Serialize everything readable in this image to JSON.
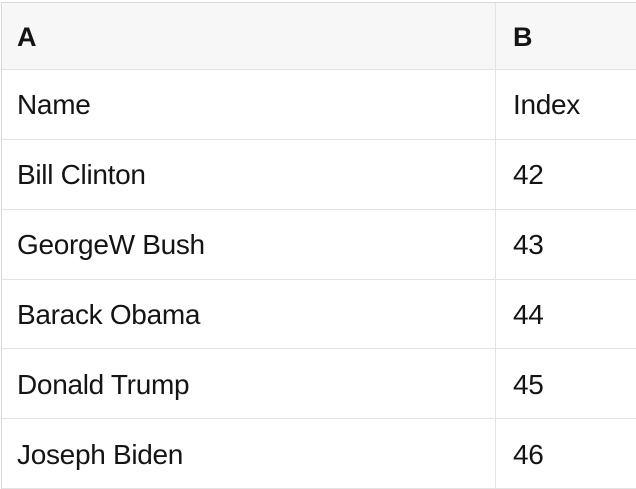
{
  "colors": {
    "background": "#ffffff",
    "header_bg": "#f7f7f7",
    "border": "#e3e3e3",
    "border_outer": "#d9d9d9",
    "text": "#141414"
  },
  "table": {
    "columns": [
      {
        "label": "A"
      },
      {
        "label": "B"
      }
    ],
    "rows": [
      [
        "Name",
        "Index"
      ],
      [
        "Bill Clinton",
        "42"
      ],
      [
        "GeorgeW Bush",
        "43"
      ],
      [
        "Barack Obama",
        "44"
      ],
      [
        "Donald Trump",
        "45"
      ],
      [
        "Joseph Biden",
        "46"
      ]
    ]
  }
}
